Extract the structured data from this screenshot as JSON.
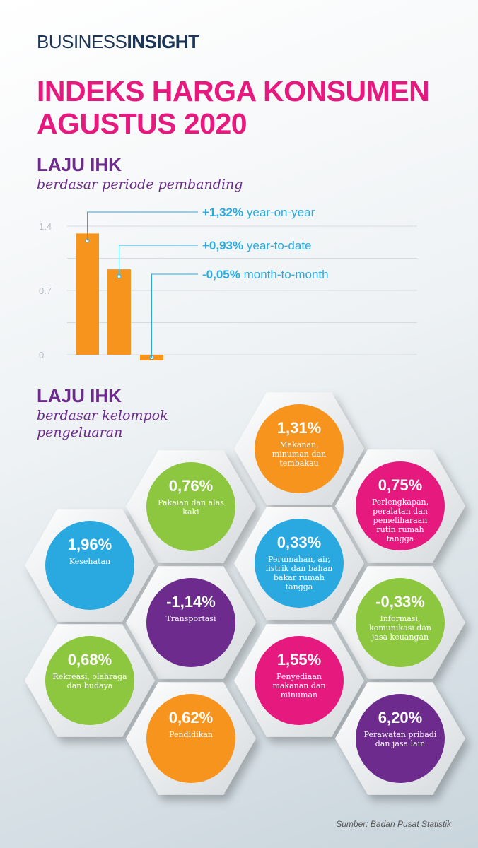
{
  "brand": {
    "part1": "BUSINESS",
    "part2": "INSIGHT"
  },
  "title": "INDEKS HARGA KONSUMEN AGUSTUS 2020",
  "section1": {
    "title": "LAJU IHK",
    "subtitle": "berdasar periode pembanding"
  },
  "section2": {
    "title": "LAJU IHK",
    "subtitle": "berdasar kelompok pengeluaran"
  },
  "source": "Sumber: Badan Pusat Statistik",
  "colors": {
    "orange": "#f7941d",
    "pink": "#e6197e",
    "purple": "#6c2b8d",
    "green": "#8dc63f",
    "blue": "#2aa9e0",
    "accent_text": "#2aa9e0"
  },
  "chart_data": {
    "type": "bar",
    "yticks": [
      "1.4",
      "0.7",
      "0"
    ],
    "ylim": [
      -0.1,
      1.4
    ],
    "grid": true,
    "categories": [
      "year-on-year",
      "year-to-date",
      "month-to-month"
    ],
    "values": [
      1.32,
      0.93,
      -0.05
    ],
    "labels": [
      {
        "value": "+1,32%",
        "text": "year-on-year"
      },
      {
        "value": "+0,93%",
        "text": "year-to-date"
      },
      {
        "value": "-0,05%",
        "text": "month-to-month"
      }
    ]
  },
  "groups": [
    {
      "value": "1,31%",
      "label": "Makanan, minuman dan tembakau",
      "color": "orange"
    },
    {
      "value": "0,76%",
      "label": "Pakaian dan alas kaki",
      "color": "green"
    },
    {
      "value": "0,75%",
      "label": "Perlengkapan, peralatan dan pemeliharaan rutin rumah tangga",
      "color": "pink"
    },
    {
      "value": "1,96%",
      "label": "Kesehatan",
      "color": "blue"
    },
    {
      "value": "0,33%",
      "label": "Perumahan, air, listrik dan bahan bakar rumah tangga",
      "color": "blue"
    },
    {
      "value": "-1,14%",
      "label": "Transportasi",
      "color": "purple"
    },
    {
      "value": "-0,33%",
      "label": "Informasi, komunikasi dan jasa keuangan",
      "color": "green"
    },
    {
      "value": "0,68%",
      "label": "Rekreasi, olahraga dan budaya",
      "color": "green"
    },
    {
      "value": "1,55%",
      "label": "Penyediaan makanan dan minuman",
      "color": "pink"
    },
    {
      "value": "0,62%",
      "label": "Pendidikan",
      "color": "orange"
    },
    {
      "value": "6,20%",
      "label": "Perawatan pribadi dan jasa lain",
      "color": "purple"
    }
  ]
}
